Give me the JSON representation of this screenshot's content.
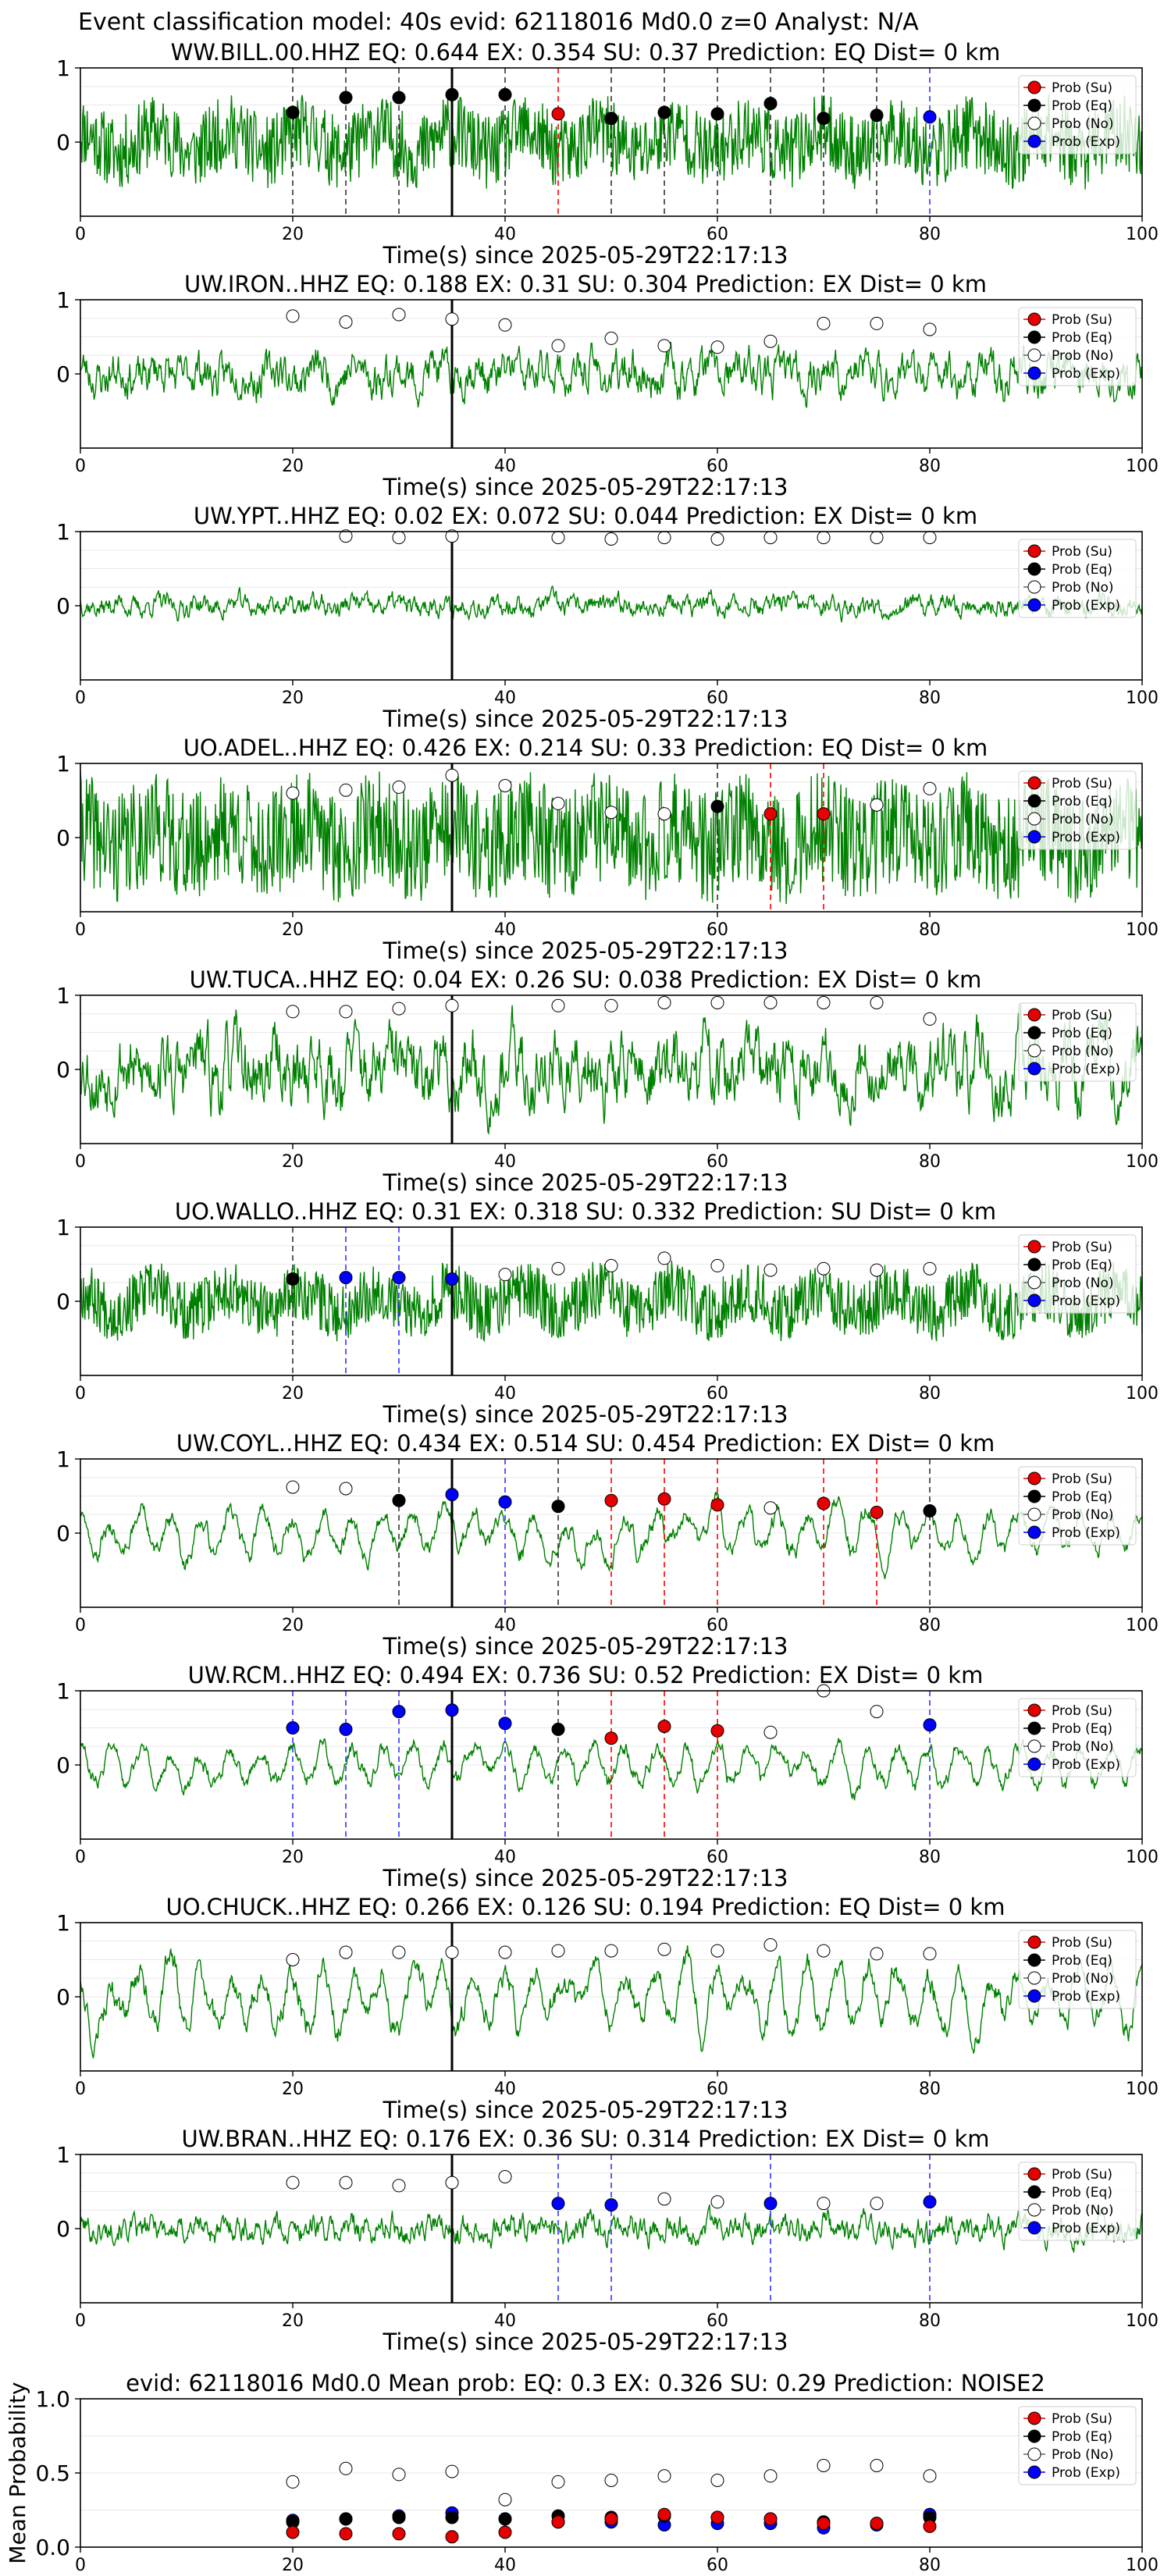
{
  "suptitle": "Event classification model: 40s evid: 62118016 Md0.0 z=0 Analyst: N/A",
  "legend_labels": [
    "Prob (Su)",
    "Prob (Eq)",
    "Prob (No)",
    "Prob (Exp)"
  ],
  "colors": {
    "su": "#e60000",
    "eq": "#000000",
    "no": "#ffffff",
    "exp": "#0000ff",
    "trace": "#008000",
    "line_su": "#ff0000",
    "line_eq": "#333333",
    "line_exp": "#3333ff"
  },
  "chart_data": [
    {
      "type": "line",
      "title": "WW.BILL.00.HHZ   EQ: 0.644  EX: 0.354  SU: 0.37   Prediction: EQ    Dist= 0 km",
      "xlabel": "Time(s) since 2025-05-29T22:17:13",
      "xlim": [
        0,
        100
      ],
      "ylim": [
        -1,
        1
      ],
      "xticks": [
        "0",
        "20",
        "40",
        "60",
        "80",
        "100"
      ],
      "yticks": [
        "1",
        "0"
      ],
      "waveform": {
        "amp": 0.5,
        "style": "hf",
        "seed": 11
      },
      "pick_time": 35,
      "markers": [
        {
          "t": 20,
          "cls": "eq",
          "p": 0.4
        },
        {
          "t": 25,
          "cls": "eq",
          "p": 0.6
        },
        {
          "t": 30,
          "cls": "eq",
          "p": 0.6
        },
        {
          "t": 35,
          "cls": "eq",
          "p": 0.64
        },
        {
          "t": 40,
          "cls": "eq",
          "p": 0.64
        },
        {
          "t": 45,
          "cls": "su",
          "p": 0.38
        },
        {
          "t": 50,
          "cls": "eq",
          "p": 0.32
        },
        {
          "t": 55,
          "cls": "eq",
          "p": 0.4
        },
        {
          "t": 60,
          "cls": "eq",
          "p": 0.38
        },
        {
          "t": 65,
          "cls": "eq",
          "p": 0.52
        },
        {
          "t": 70,
          "cls": "eq",
          "p": 0.32
        },
        {
          "t": 75,
          "cls": "eq",
          "p": 0.36
        },
        {
          "t": 80,
          "cls": "exp",
          "p": 0.34
        }
      ]
    },
    {
      "type": "line",
      "title": "UW.IRON..HHZ   EQ: 0.188  EX: 0.31  SU: 0.304   Prediction: EX    Dist= 0 km",
      "xlabel": "Time(s) since 2025-05-29T22:17:13",
      "xlim": [
        0,
        100
      ],
      "ylim": [
        -1,
        1
      ],
      "xticks": [
        "0",
        "20",
        "40",
        "60",
        "80",
        "100"
      ],
      "yticks": [
        "1",
        "0"
      ],
      "waveform": {
        "amp": 0.4,
        "style": "mid",
        "seed": 23
      },
      "pick_time": 35,
      "markers": [
        {
          "t": 20,
          "cls": "no",
          "p": 0.78
        },
        {
          "t": 25,
          "cls": "no",
          "p": 0.7
        },
        {
          "t": 30,
          "cls": "no",
          "p": 0.8
        },
        {
          "t": 35,
          "cls": "no",
          "p": 0.74
        },
        {
          "t": 40,
          "cls": "no",
          "p": 0.66
        },
        {
          "t": 45,
          "cls": "no",
          "p": 0.38
        },
        {
          "t": 50,
          "cls": "no",
          "p": 0.48
        },
        {
          "t": 55,
          "cls": "no",
          "p": 0.38
        },
        {
          "t": 60,
          "cls": "no",
          "p": 0.36
        },
        {
          "t": 65,
          "cls": "no",
          "p": 0.44
        },
        {
          "t": 70,
          "cls": "no",
          "p": 0.68
        },
        {
          "t": 75,
          "cls": "no",
          "p": 0.68
        },
        {
          "t": 80,
          "cls": "no",
          "p": 0.6
        }
      ]
    },
    {
      "type": "line",
      "title": "UW.YPT..HHZ   EQ: 0.02  EX: 0.072  SU: 0.044   Prediction: EX    Dist= 0 km",
      "xlabel": "Time(s) since 2025-05-29T22:17:13",
      "xlim": [
        0,
        100
      ],
      "ylim": [
        -1,
        1
      ],
      "xticks": [
        "0",
        "20",
        "40",
        "60",
        "80",
        "100"
      ],
      "yticks": [
        "1",
        "0"
      ],
      "waveform": {
        "amp": 0.2,
        "style": "mid",
        "seed": 37
      },
      "pick_time": 35,
      "markers": [
        {
          "t": 25,
          "cls": "no",
          "p": 0.94
        },
        {
          "t": 30,
          "cls": "no",
          "p": 0.92
        },
        {
          "t": 35,
          "cls": "no",
          "p": 0.94
        },
        {
          "t": 45,
          "cls": "no",
          "p": 0.92
        },
        {
          "t": 50,
          "cls": "no",
          "p": 0.9
        },
        {
          "t": 55,
          "cls": "no",
          "p": 0.92
        },
        {
          "t": 60,
          "cls": "no",
          "p": 0.9
        },
        {
          "t": 65,
          "cls": "no",
          "p": 0.92
        },
        {
          "t": 70,
          "cls": "no",
          "p": 0.92
        },
        {
          "t": 75,
          "cls": "no",
          "p": 0.92
        },
        {
          "t": 80,
          "cls": "no",
          "p": 0.92
        }
      ]
    },
    {
      "type": "line",
      "title": "UO.ADEL..HHZ   EQ: 0.426  EX: 0.214  SU: 0.33   Prediction: EQ    Dist= 0 km",
      "xlabel": "Time(s) since 2025-05-29T22:17:13",
      "xlim": [
        0,
        100
      ],
      "ylim": [
        -1,
        1
      ],
      "xticks": [
        "0",
        "20",
        "40",
        "60",
        "80",
        "100"
      ],
      "yticks": [
        "1",
        "0"
      ],
      "waveform": {
        "amp": 0.75,
        "style": "hf",
        "seed": 41
      },
      "pick_time": 35,
      "markers": [
        {
          "t": 20,
          "cls": "no",
          "p": 0.6
        },
        {
          "t": 25,
          "cls": "no",
          "p": 0.64
        },
        {
          "t": 30,
          "cls": "no",
          "p": 0.68
        },
        {
          "t": 35,
          "cls": "no",
          "p": 0.84
        },
        {
          "t": 40,
          "cls": "no",
          "p": 0.7
        },
        {
          "t": 45,
          "cls": "no",
          "p": 0.46
        },
        {
          "t": 50,
          "cls": "no",
          "p": 0.34
        },
        {
          "t": 55,
          "cls": "no",
          "p": 0.32
        },
        {
          "t": 60,
          "cls": "eq",
          "p": 0.42
        },
        {
          "t": 65,
          "cls": "su",
          "p": 0.32
        },
        {
          "t": 70,
          "cls": "su",
          "p": 0.32
        },
        {
          "t": 75,
          "cls": "no",
          "p": 0.44
        },
        {
          "t": 80,
          "cls": "no",
          "p": 0.66
        }
      ]
    },
    {
      "type": "line",
      "title": "UW.TUCA..HHZ   EQ: 0.04  EX: 0.26  SU: 0.038   Prediction: EX    Dist= 0 km",
      "xlabel": "Time(s) since 2025-05-29T22:17:13",
      "xlim": [
        0,
        100
      ],
      "ylim": [
        -1,
        1
      ],
      "xticks": [
        "0",
        "20",
        "40",
        "60",
        "80",
        "100"
      ],
      "yticks": [
        "1",
        "0"
      ],
      "waveform": {
        "amp": 0.7,
        "style": "mid",
        "seed": 53
      },
      "pick_time": 35,
      "markers": [
        {
          "t": 20,
          "cls": "no",
          "p": 0.78
        },
        {
          "t": 25,
          "cls": "no",
          "p": 0.78
        },
        {
          "t": 30,
          "cls": "no",
          "p": 0.82
        },
        {
          "t": 35,
          "cls": "no",
          "p": 0.86
        },
        {
          "t": 45,
          "cls": "no",
          "p": 0.86
        },
        {
          "t": 50,
          "cls": "no",
          "p": 0.86
        },
        {
          "t": 55,
          "cls": "no",
          "p": 0.9
        },
        {
          "t": 60,
          "cls": "no",
          "p": 0.9
        },
        {
          "t": 65,
          "cls": "no",
          "p": 0.9
        },
        {
          "t": 70,
          "cls": "no",
          "p": 0.9
        },
        {
          "t": 75,
          "cls": "no",
          "p": 0.9
        },
        {
          "t": 80,
          "cls": "no",
          "p": 0.68
        }
      ]
    },
    {
      "type": "line",
      "title": "UO.WALLO..HHZ   EQ: 0.31  EX: 0.318  SU: 0.332   Prediction: SU    Dist= 0 km",
      "xlabel": "Time(s) since 2025-05-29T22:17:13",
      "xlim": [
        0,
        100
      ],
      "ylim": [
        -1,
        1
      ],
      "xticks": [
        "0",
        "20",
        "40",
        "60",
        "80",
        "100"
      ],
      "yticks": [
        "1",
        "0"
      ],
      "waveform": {
        "amp": 0.4,
        "style": "hf",
        "seed": 67
      },
      "pick_time": 35,
      "markers": [
        {
          "t": 20,
          "cls": "eq",
          "p": 0.3
        },
        {
          "t": 25,
          "cls": "exp",
          "p": 0.32
        },
        {
          "t": 30,
          "cls": "exp",
          "p": 0.32
        },
        {
          "t": 35,
          "cls": "exp",
          "p": 0.3
        },
        {
          "t": 40,
          "cls": "no",
          "p": 0.36
        },
        {
          "t": 45,
          "cls": "no",
          "p": 0.44
        },
        {
          "t": 50,
          "cls": "no",
          "p": 0.48
        },
        {
          "t": 55,
          "cls": "no",
          "p": 0.58
        },
        {
          "t": 60,
          "cls": "no",
          "p": 0.48
        },
        {
          "t": 65,
          "cls": "no",
          "p": 0.42
        },
        {
          "t": 70,
          "cls": "no",
          "p": 0.44
        },
        {
          "t": 75,
          "cls": "no",
          "p": 0.42
        },
        {
          "t": 80,
          "cls": "no",
          "p": 0.44
        }
      ]
    },
    {
      "type": "line",
      "title": "UW.COYL..HHZ   EQ: 0.434  EX: 0.514  SU: 0.454   Prediction: EX    Dist= 0 km",
      "xlabel": "Time(s) since 2025-05-29T22:17:13",
      "xlim": [
        0,
        100
      ],
      "ylim": [
        -1,
        1
      ],
      "xticks": [
        "0",
        "20",
        "40",
        "60",
        "80",
        "100"
      ],
      "yticks": [
        "1",
        "0"
      ],
      "waveform": {
        "amp": 0.4,
        "style": "lf",
        "seed": 71
      },
      "pick_time": 35,
      "markers": [
        {
          "t": 20,
          "cls": "no",
          "p": 0.62
        },
        {
          "t": 25,
          "cls": "no",
          "p": 0.6
        },
        {
          "t": 30,
          "cls": "eq",
          "p": 0.44
        },
        {
          "t": 35,
          "cls": "exp",
          "p": 0.52
        },
        {
          "t": 40,
          "cls": "exp",
          "p": 0.42
        },
        {
          "t": 45,
          "cls": "eq",
          "p": 0.36
        },
        {
          "t": 50,
          "cls": "su",
          "p": 0.44
        },
        {
          "t": 55,
          "cls": "su",
          "p": 0.46
        },
        {
          "t": 60,
          "cls": "su",
          "p": 0.38
        },
        {
          "t": 65,
          "cls": "no",
          "p": 0.34
        },
        {
          "t": 70,
          "cls": "su",
          "p": 0.4
        },
        {
          "t": 75,
          "cls": "su",
          "p": 0.28
        },
        {
          "t": 80,
          "cls": "eq",
          "p": 0.3
        }
      ]
    },
    {
      "type": "line",
      "title": "UW.RCM..HHZ   EQ: 0.494  EX: 0.736  SU: 0.52   Prediction: EX    Dist= 0 km",
      "xlabel": "Time(s) since 2025-05-29T22:17:13",
      "xlim": [
        0,
        100
      ],
      "ylim": [
        -1,
        1
      ],
      "xticks": [
        "0",
        "20",
        "40",
        "60",
        "80",
        "100"
      ],
      "yticks": [
        "1",
        "0"
      ],
      "waveform": {
        "amp": 0.35,
        "style": "lf",
        "seed": 83
      },
      "pick_time": 35,
      "markers": [
        {
          "t": 20,
          "cls": "exp",
          "p": 0.5
        },
        {
          "t": 25,
          "cls": "exp",
          "p": 0.48
        },
        {
          "t": 30,
          "cls": "exp",
          "p": 0.72
        },
        {
          "t": 35,
          "cls": "exp",
          "p": 0.74
        },
        {
          "t": 40,
          "cls": "exp",
          "p": 0.56
        },
        {
          "t": 45,
          "cls": "eq",
          "p": 0.48
        },
        {
          "t": 50,
          "cls": "su",
          "p": 0.36
        },
        {
          "t": 55,
          "cls": "su",
          "p": 0.52
        },
        {
          "t": 60,
          "cls": "su",
          "p": 0.46
        },
        {
          "t": 65,
          "cls": "no",
          "p": 0.44
        },
        {
          "t": 70,
          "cls": "no",
          "p": 1.0
        },
        {
          "t": 75,
          "cls": "no",
          "p": 0.72
        },
        {
          "t": 80,
          "cls": "exp",
          "p": 0.54
        }
      ]
    },
    {
      "type": "line",
      "title": "UO.CHUCK..HHZ   EQ: 0.266  EX: 0.126  SU: 0.194   Prediction: EQ    Dist= 0 km",
      "xlabel": "Time(s) since 2025-05-29T22:17:13",
      "xlim": [
        0,
        100
      ],
      "ylim": [
        -1,
        1
      ],
      "xticks": [
        "0",
        "20",
        "40",
        "60",
        "80",
        "100"
      ],
      "yticks": [
        "1",
        "0"
      ],
      "waveform": {
        "amp": 0.55,
        "style": "lf",
        "seed": 97
      },
      "pick_time": 35,
      "markers": [
        {
          "t": 20,
          "cls": "no",
          "p": 0.5
        },
        {
          "t": 25,
          "cls": "no",
          "p": 0.6
        },
        {
          "t": 30,
          "cls": "no",
          "p": 0.6
        },
        {
          "t": 35,
          "cls": "no",
          "p": 0.6
        },
        {
          "t": 40,
          "cls": "no",
          "p": 0.6
        },
        {
          "t": 45,
          "cls": "no",
          "p": 0.62
        },
        {
          "t": 50,
          "cls": "no",
          "p": 0.62
        },
        {
          "t": 55,
          "cls": "no",
          "p": 0.64
        },
        {
          "t": 60,
          "cls": "no",
          "p": 0.62
        },
        {
          "t": 65,
          "cls": "no",
          "p": 0.7
        },
        {
          "t": 70,
          "cls": "no",
          "p": 0.62
        },
        {
          "t": 75,
          "cls": "no",
          "p": 0.58
        },
        {
          "t": 80,
          "cls": "no",
          "p": 0.58
        }
      ]
    },
    {
      "type": "line",
      "title": "UW.BRAN..HHZ   EQ: 0.176  EX: 0.36  SU: 0.314   Prediction: EX    Dist= 0 km",
      "xlabel": "Time(s) since 2025-05-29T22:17:13",
      "xlim": [
        0,
        100
      ],
      "ylim": [
        -1,
        1
      ],
      "xticks": [
        "0",
        "20",
        "40",
        "60",
        "80",
        "100"
      ],
      "yticks": [
        "1",
        "0"
      ],
      "waveform": {
        "amp": 0.25,
        "style": "mid",
        "seed": 101
      },
      "pick_time": 35,
      "markers": [
        {
          "t": 20,
          "cls": "no",
          "p": 0.62
        },
        {
          "t": 25,
          "cls": "no",
          "p": 0.62
        },
        {
          "t": 30,
          "cls": "no",
          "p": 0.58
        },
        {
          "t": 35,
          "cls": "no",
          "p": 0.62
        },
        {
          "t": 40,
          "cls": "no",
          "p": 0.7
        },
        {
          "t": 45,
          "cls": "exp",
          "p": 0.34
        },
        {
          "t": 50,
          "cls": "exp",
          "p": 0.32
        },
        {
          "t": 55,
          "cls": "no",
          "p": 0.4
        },
        {
          "t": 60,
          "cls": "no",
          "p": 0.36
        },
        {
          "t": 65,
          "cls": "exp",
          "p": 0.34
        },
        {
          "t": 70,
          "cls": "no",
          "p": 0.34
        },
        {
          "t": 75,
          "cls": "no",
          "p": 0.34
        },
        {
          "t": 80,
          "cls": "exp",
          "p": 0.36
        }
      ]
    },
    {
      "type": "scatter",
      "title": "evid: 62118016  Md0.0   Mean prob:   EQ: 0.3  EX: 0.326  SU: 0.29   Prediction: NOISE2",
      "ylabel": "Mean Probability",
      "xlim": [
        0,
        100
      ],
      "ylim": [
        0,
        1
      ],
      "xticks": [
        "0",
        "20",
        "40",
        "60",
        "80",
        "100"
      ],
      "yticks": [
        "0.0",
        "0.5",
        "1.0"
      ],
      "x": [
        20,
        25,
        30,
        35,
        40,
        45,
        50,
        55,
        60,
        65,
        70,
        75,
        80
      ],
      "series": [
        {
          "key": "no",
          "values": [
            0.44,
            0.53,
            0.49,
            0.51,
            0.32,
            0.44,
            0.45,
            0.48,
            0.45,
            0.48,
            0.55,
            0.55,
            0.48
          ]
        },
        {
          "key": "exp",
          "values": [
            0.18,
            0.19,
            0.21,
            0.23,
            0.19,
            0.17,
            0.17,
            0.15,
            0.16,
            0.16,
            0.13,
            0.15,
            0.22
          ]
        },
        {
          "key": "eq",
          "values": [
            0.17,
            0.19,
            0.2,
            0.2,
            0.19,
            0.21,
            0.2,
            0.21,
            0.2,
            0.19,
            0.17,
            0.16,
            0.2
          ]
        },
        {
          "key": "su",
          "values": [
            0.1,
            0.09,
            0.09,
            0.07,
            0.1,
            0.17,
            0.19,
            0.22,
            0.2,
            0.19,
            0.16,
            0.16,
            0.14
          ]
        }
      ]
    }
  ]
}
